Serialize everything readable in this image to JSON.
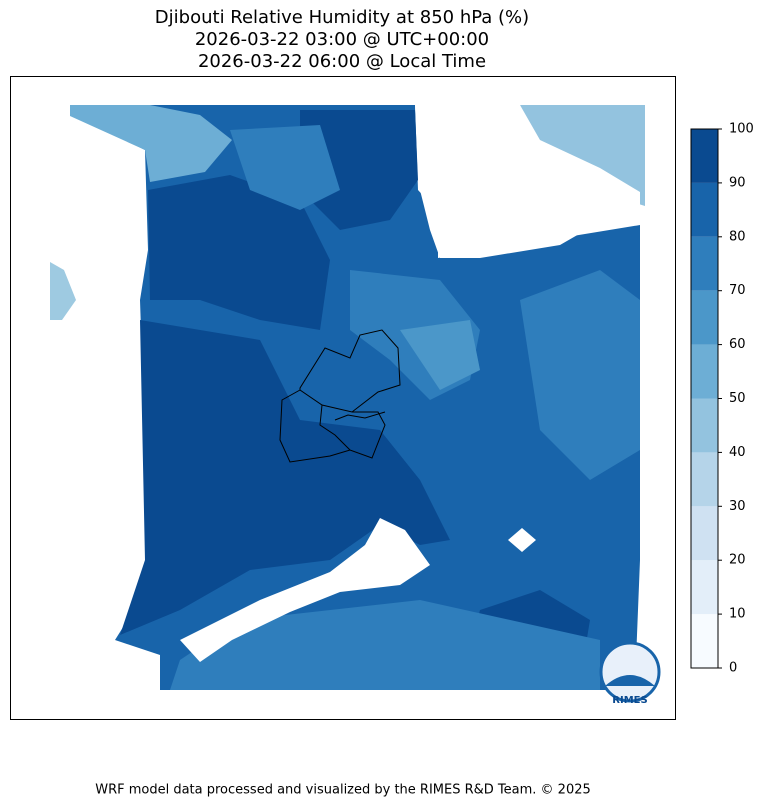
{
  "title": [
    "Djibouti Relative Humidity at 850 hPa (%)",
    "2026-03-22 03:00 @ UTC+00:00",
    "2026-03-22 06:00 @ Local Time"
  ],
  "colorbar": {
    "levels": [
      0,
      10,
      20,
      30,
      40,
      50,
      60,
      70,
      80,
      90,
      100
    ],
    "colors": [
      "#f7fbff",
      "#e3eef9",
      "#cfe1f2",
      "#b5d4e9",
      "#93c3df",
      "#6daed5",
      "#4b97c9",
      "#2f7ebc",
      "#1864aa",
      "#0a4a90"
    ],
    "lim": [
      0,
      100
    ]
  },
  "logo": "RIMES",
  "footer": "WRF model data processed and visualized by the RIMES R&D Team. © 2025"
}
